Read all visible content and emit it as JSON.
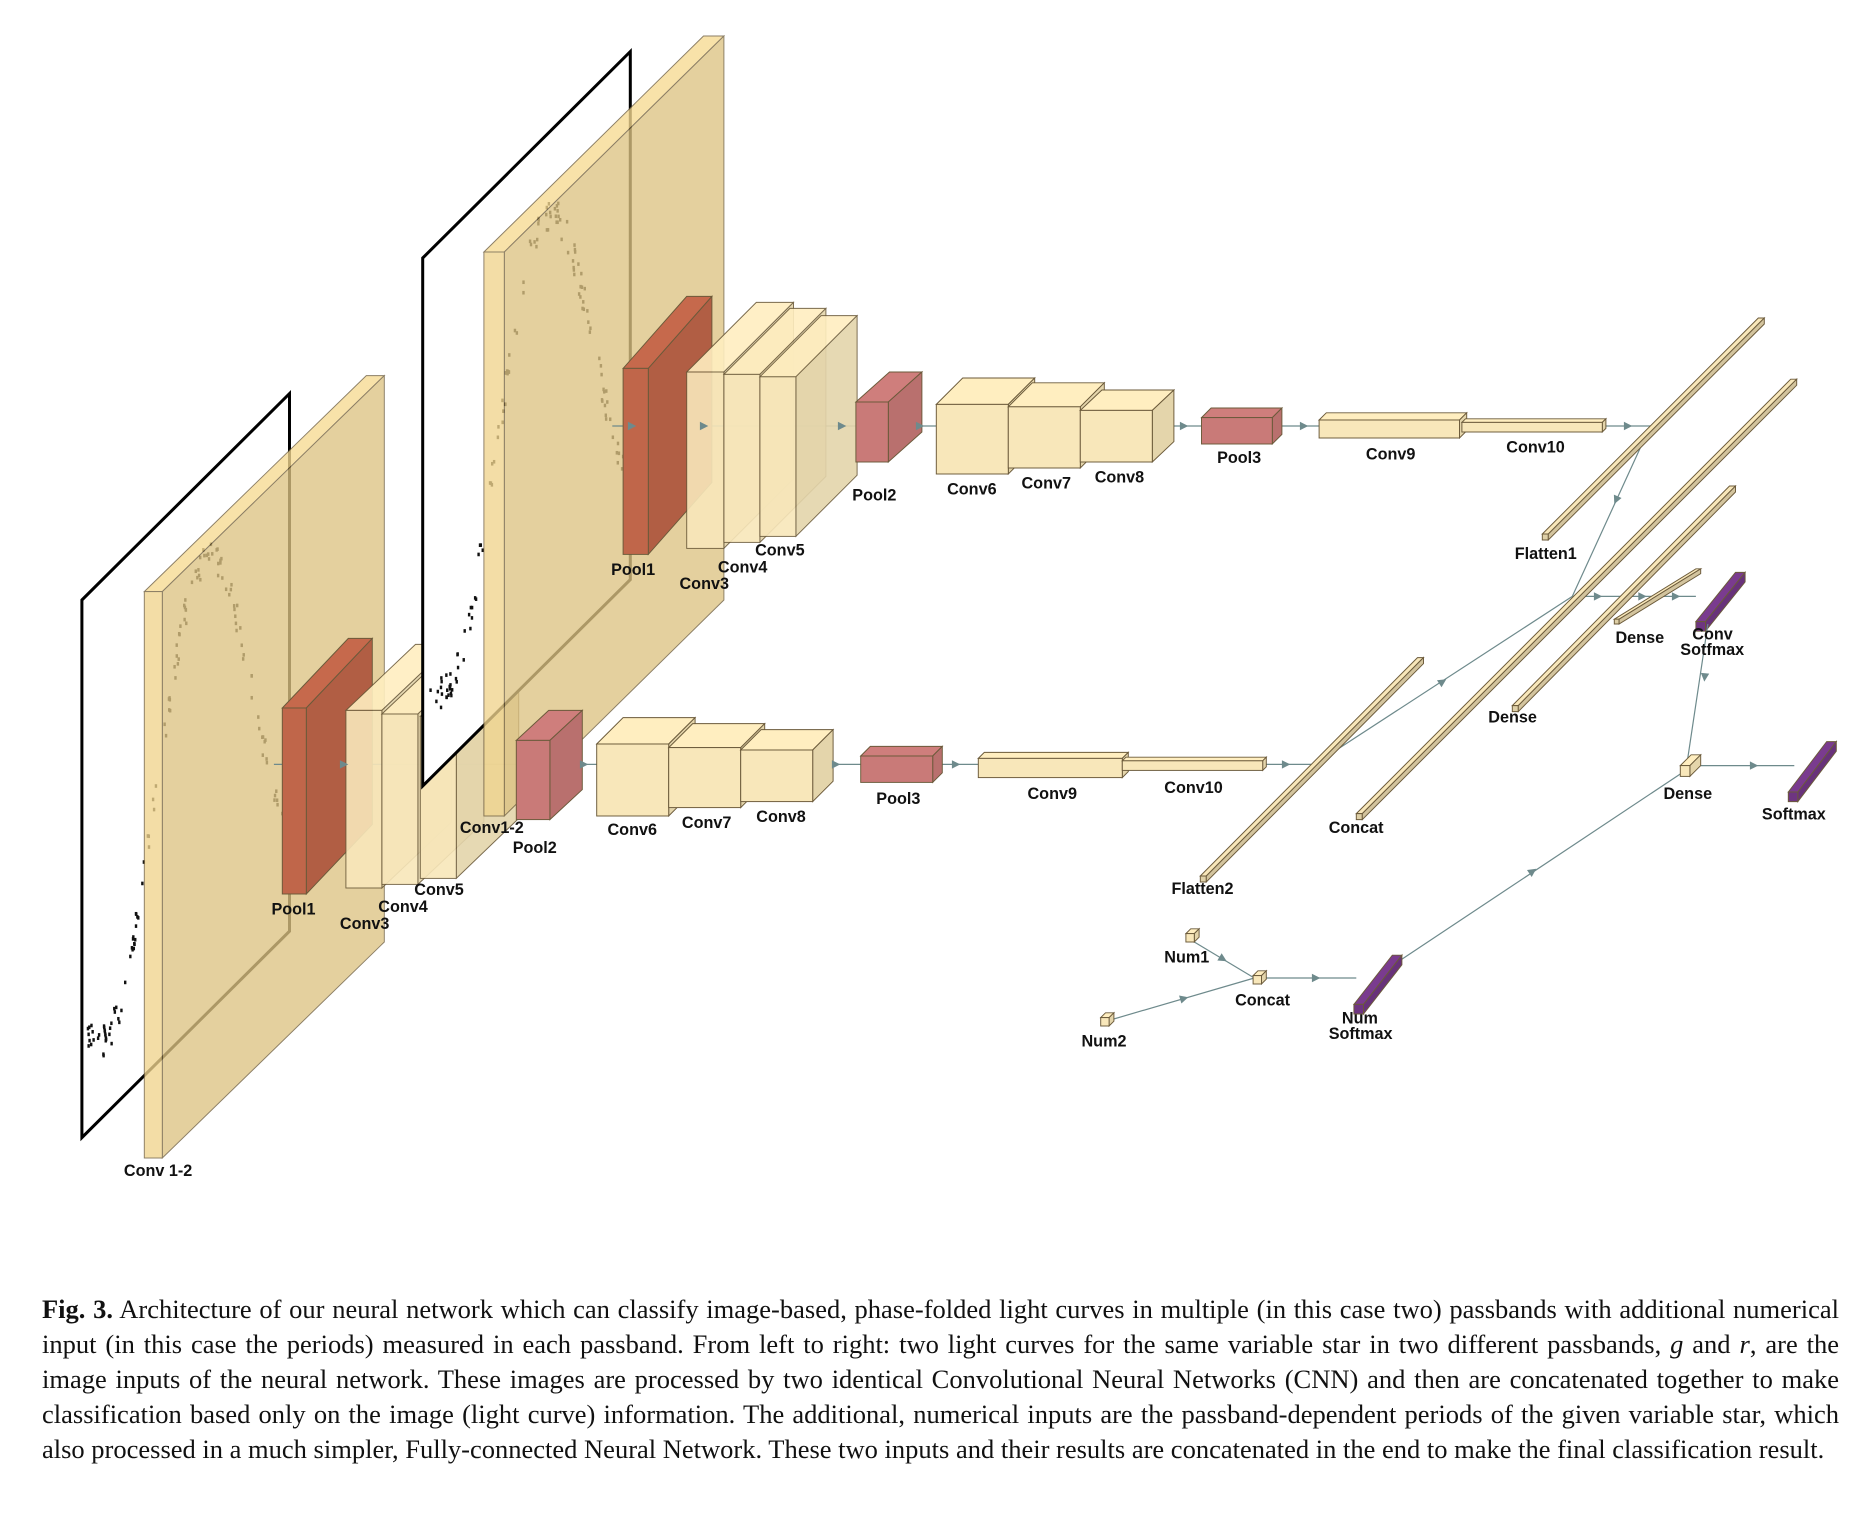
{
  "diagram": {
    "labels": {
      "conv12_bottom": "Conv 1-2",
      "pool1_b": "Pool1",
      "conv3_b": "Conv3",
      "conv4_b": "Conv4",
      "conv5_b": "Conv5",
      "conv12_top": "Conv1-2",
      "pool2_b": "Pool2",
      "conv6_b": "Conv6",
      "conv7_b": "Conv7",
      "conv8_b": "Conv8",
      "pool3_b": "Pool3",
      "conv9_b": "Conv9",
      "conv10_b": "Conv10",
      "pool1_t": "Pool1",
      "conv3_t": "Conv3",
      "conv4_t": "Conv4",
      "conv5_t": "Conv5",
      "pool2_t": "Pool2",
      "conv6_t": "Conv6",
      "conv7_t": "Conv7",
      "conv8_t": "Conv8",
      "pool3_t": "Pool3",
      "conv9_t": "Conv9",
      "conv10_t": "Conv10",
      "flatten1": "Flatten1",
      "flatten2": "Flatten2",
      "concat_img": "Concat",
      "dense_a": "Dense",
      "dense_b": "Dense",
      "conv_softmax_1": "Conv",
      "conv_softmax_2": "Sotfmax",
      "dense_final": "Dense",
      "softmax": "Softmax",
      "num1": "Num1",
      "num2": "Num2",
      "concat_num": "Concat",
      "num_softmax_1": "Num",
      "num_softmax_2": "Softmax"
    },
    "colors": {
      "plane": "#f0d48e",
      "conv": "#f8e7ba",
      "pool1": "#c0664a",
      "pool": "#c97a78",
      "softmax": "#7a3b8f",
      "arrow": "#6e8a8c"
    }
  },
  "caption": {
    "label": "Fig. 3.",
    "text_1": " Architecture of our neural network which can classify image-based, phase-folded light curves in multiple (in this case two) passbands with additional numerical input (in this case the periods) measured in each passband. From left to right: two light curves for the same variable star in two different passbands, ",
    "g": "g",
    "text_2": " and ",
    "r": "r",
    "text_3": ", are the image inputs of the neural network. These images are processed by two identical Convolutional Neural Networks (CNN) and then are concatenated together to make classification based only on the image (light curve) information. The additional, numerical inputs are the passband-dependent periods of the given variable star, which also processed in a much simpler, Fully-connected Neural Network. These two inputs and their results are concatenated in the end to make the final classification result."
  }
}
